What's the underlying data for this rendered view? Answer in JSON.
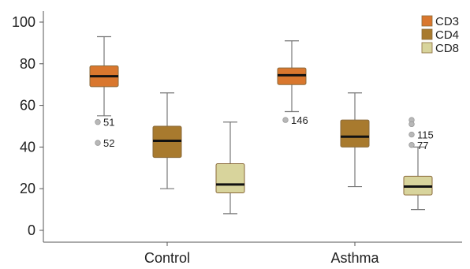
{
  "chart_data": {
    "type": "boxplot",
    "categories": [
      "Control",
      "Asthma"
    ],
    "ylim": [
      0,
      100
    ],
    "yticks": [
      "0",
      "20",
      "40",
      "60",
      "80",
      "100"
    ],
    "grid": false,
    "legend_position": "top-right",
    "series": [
      {
        "name": "CD3",
        "color": "#d9772e",
        "boxes": [
          {
            "min": 55,
            "q1": 69,
            "median": 74,
            "q3": 79,
            "max": 93,
            "outliers": [
              {
                "value": 52,
                "label": "51"
              },
              {
                "value": 42,
                "label": "52"
              }
            ]
          },
          {
            "min": 57,
            "q1": 70,
            "median": 74.5,
            "q3": 78,
            "max": 91,
            "outliers": [
              {
                "value": 53,
                "label": "146"
              }
            ]
          }
        ]
      },
      {
        "name": "CD4",
        "color": "#a87a2e",
        "boxes": [
          {
            "min": 20,
            "q1": 35,
            "median": 43,
            "q3": 50,
            "max": 66,
            "outliers": []
          },
          {
            "min": 21,
            "q1": 40,
            "median": 45,
            "q3": 53,
            "max": 66,
            "outliers": []
          }
        ]
      },
      {
        "name": "CD8",
        "color": "#d8d49c",
        "boxes": [
          {
            "min": 8,
            "q1": 18,
            "median": 22,
            "q3": 32,
            "max": 52,
            "outliers": []
          },
          {
            "min": 10,
            "q1": 17,
            "median": 21,
            "q3": 26,
            "max": 40,
            "outliers": [
              {
                "value": 53,
                "label": ""
              },
              {
                "value": 51,
                "label": ""
              },
              {
                "value": 46,
                "label": "115"
              },
              {
                "value": 41,
                "label": "77"
              }
            ]
          }
        ]
      }
    ]
  }
}
